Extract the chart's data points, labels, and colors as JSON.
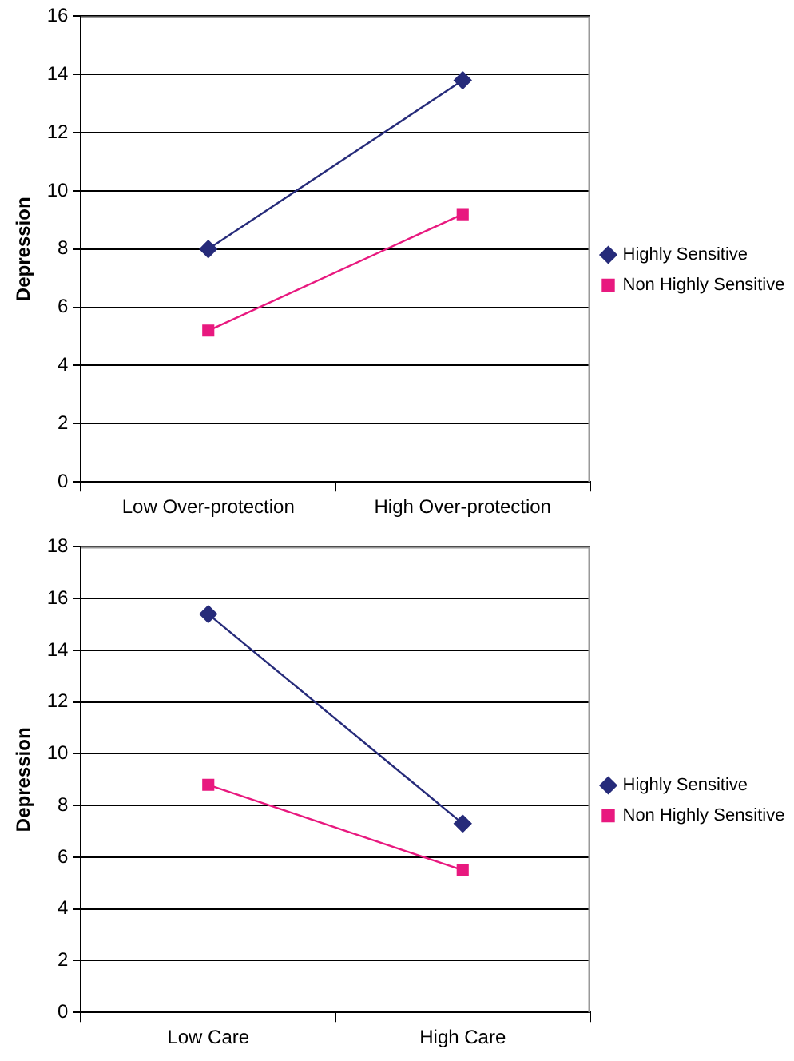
{
  "chart_data": [
    {
      "type": "line",
      "ylabel": "Depression",
      "categories": [
        "Low Over-protection",
        "High Over-protection"
      ],
      "ylim": [
        0,
        16
      ],
      "yticks": [
        0,
        2,
        4,
        6,
        8,
        10,
        12,
        14,
        16
      ],
      "grid": "y",
      "legend": "right",
      "series": [
        {
          "name": "Highly Sensitive",
          "color": "#262b7a",
          "marker": "diamond",
          "values": [
            8.0,
            13.8
          ]
        },
        {
          "name": "Non Highly Sensitive",
          "color": "#e8197f",
          "marker": "square",
          "values": [
            5.2,
            9.2
          ]
        }
      ]
    },
    {
      "type": "line",
      "ylabel": "Depression",
      "categories": [
        "Low Care",
        "High Care"
      ],
      "ylim": [
        0,
        18
      ],
      "yticks": [
        0,
        2,
        4,
        6,
        8,
        10,
        12,
        14,
        16,
        18
      ],
      "grid": "y",
      "legend": "right",
      "series": [
        {
          "name": "Highly Sensitive",
          "color": "#262b7a",
          "marker": "diamond",
          "values": [
            15.4,
            7.3
          ]
        },
        {
          "name": "Non Highly Sensitive",
          "color": "#e8197f",
          "marker": "square",
          "values": [
            8.8,
            5.5
          ]
        }
      ]
    }
  ]
}
